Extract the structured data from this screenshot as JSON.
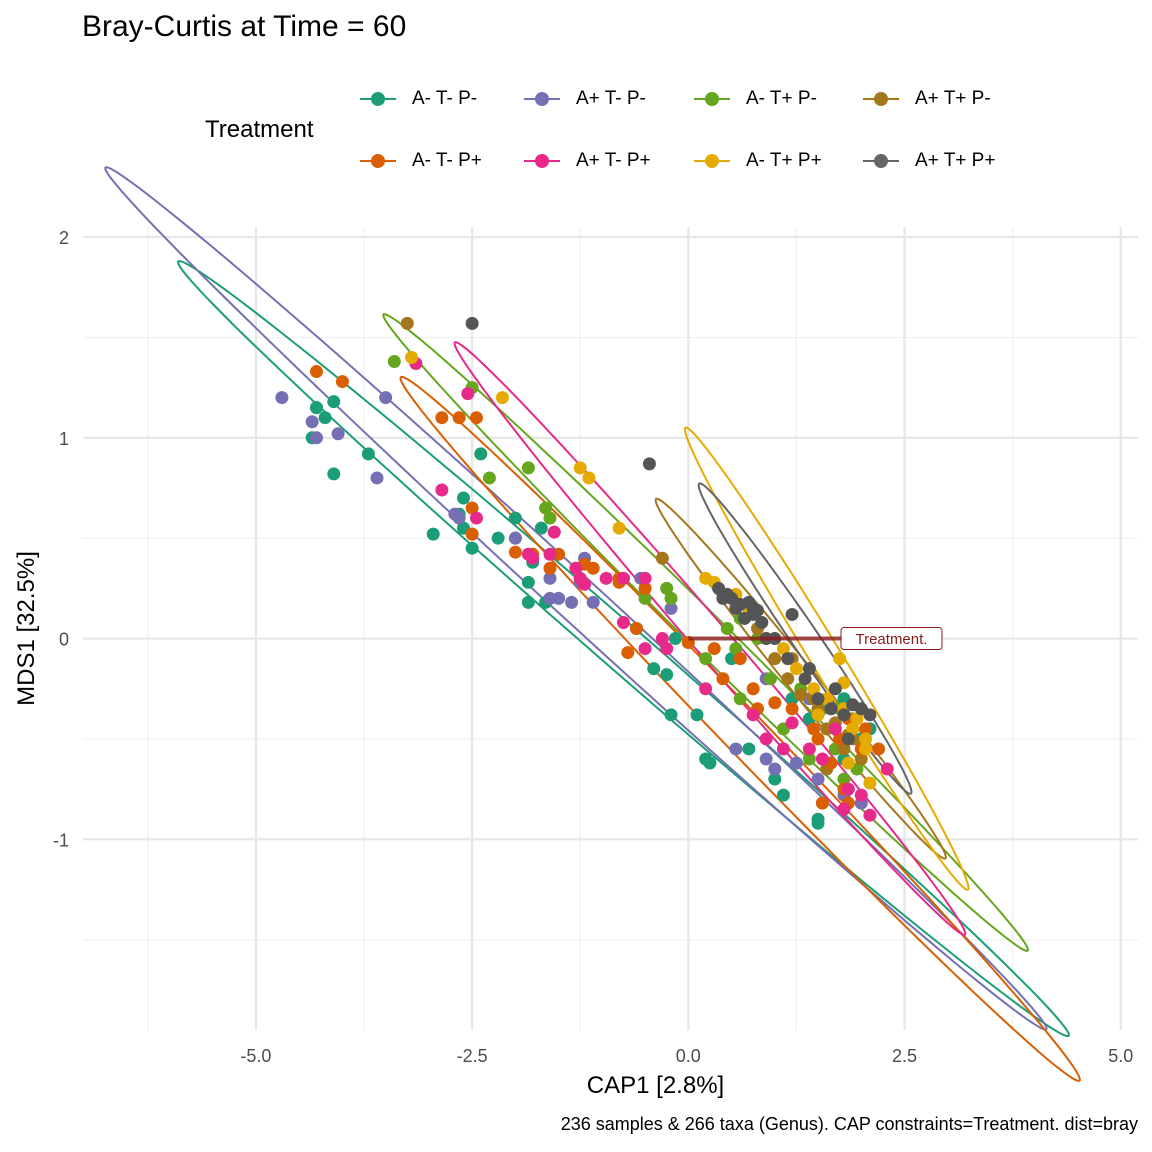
{
  "caption": "236 samples & 266 taxa (Genus). CAP constraints=Treatment. dist=bray",
  "legend": {
    "title": "Treatment",
    "items": [
      {
        "label": "A- T- P-",
        "color": "#1B9E77"
      },
      {
        "label": "A+ T- P-",
        "color": "#7570B3"
      },
      {
        "label": "A- T+ P-",
        "color": "#66A61E"
      },
      {
        "label": "A+ T+ P-",
        "color": "#A6761D"
      },
      {
        "label": "A- T- P+",
        "color": "#D95F02"
      },
      {
        "label": "A+ T- P+",
        "color": "#E7298A"
      },
      {
        "label": "A- T+ P+",
        "color": "#E6AB02"
      },
      {
        "label": "A+ T+ P+",
        "color": "#666666"
      }
    ]
  },
  "chart_data": {
    "type": "scatter",
    "title": "Bray-Curtis at Time = 60",
    "xlabel": "CAP1 [2.8%]",
    "ylabel": "MDS1 [32.5%]",
    "xlim": [
      -7.0,
      5.2
    ],
    "ylim": [
      -1.95,
      2.05
    ],
    "x_ticks": [
      -5.0,
      -2.5,
      0.0,
      2.5,
      5.0
    ],
    "x_tick_labels": [
      "-5.0",
      "-2.5",
      "0.0",
      "2.5",
      "5.0"
    ],
    "y_ticks": [
      -1,
      0,
      1,
      2
    ],
    "y_tick_labels": [
      "-1",
      "0",
      "1",
      "2"
    ],
    "grid": true,
    "legend_position": "top",
    "biplot_arrow": {
      "label": "Treatment.",
      "from": [
        0.0,
        0.0
      ],
      "to": [
        1.8,
        0.0
      ],
      "color": "#8B1A1A"
    },
    "ellipses": [
      {
        "series": "A- T- P-",
        "color": "#1B9E77",
        "center": [
          -0.75,
          -0.05
        ],
        "semi_major": 5.5,
        "semi_minor": 0.14,
        "angle_deg": -20.5
      },
      {
        "series": "A+ T- P-",
        "color": "#7570B3",
        "center": [
          -1.3,
          0.2
        ],
        "semi_major": 5.85,
        "semi_minor": 0.14,
        "angle_deg": -21.5
      },
      {
        "series": "A- T+ P-",
        "color": "#66A61E",
        "center": [
          0.2,
          0.03
        ],
        "semi_major": 4.05,
        "semi_minor": 0.12,
        "angle_deg": -23.0
      },
      {
        "series": "A+ T+ P-",
        "color": "#A6761D",
        "center": [
          1.3,
          -0.2
        ],
        "semi_major": 1.9,
        "semi_minor": 0.1,
        "angle_deg": -28.0
      },
      {
        "series": "A- T- P+",
        "color": "#D95F02",
        "center": [
          0.6,
          -0.45
        ],
        "semi_major": 4.3,
        "semi_minor": 0.14,
        "angle_deg": -24.0
      },
      {
        "series": "A+ T- P+",
        "color": "#E7298A",
        "center": [
          0.25,
          0.0
        ],
        "semi_major": 3.3,
        "semi_minor": 0.12,
        "angle_deg": -26.5
      },
      {
        "series": "A- T+ P+",
        "color": "#E6AB02",
        "center": [
          1.6,
          -0.1
        ],
        "semi_major": 2.0,
        "semi_minor": 0.12,
        "angle_deg": -35.0
      },
      {
        "series": "A+ T+ P+",
        "color": "#666666",
        "center": [
          1.35,
          0.0
        ],
        "semi_major": 1.45,
        "semi_minor": 0.1,
        "angle_deg": -32.0
      }
    ],
    "series": [
      {
        "name": "A- T- P-",
        "color": "#1B9E77",
        "points": [
          [
            -4.3,
            1.15
          ],
          [
            -4.2,
            1.1
          ],
          [
            -4.1,
            1.18
          ],
          [
            -4.35,
            1.0
          ],
          [
            -4.1,
            0.82
          ],
          [
            -3.7,
            0.92
          ],
          [
            -2.95,
            0.52
          ],
          [
            -2.6,
            0.7
          ],
          [
            -2.5,
            0.45
          ],
          [
            -2.2,
            0.5
          ],
          [
            -2.0,
            0.6
          ],
          [
            -1.85,
            0.28
          ],
          [
            -1.65,
            0.18
          ],
          [
            -1.85,
            0.18
          ],
          [
            -2.4,
            0.92
          ],
          [
            -1.7,
            0.55
          ],
          [
            -0.4,
            -0.15
          ],
          [
            -0.25,
            -0.18
          ],
          [
            -0.2,
            -0.38
          ],
          [
            0.1,
            -0.38
          ],
          [
            0.2,
            -0.6
          ],
          [
            0.25,
            -0.62
          ],
          [
            1.0,
            -0.7
          ],
          [
            1.1,
            -0.78
          ],
          [
            1.5,
            -0.9
          ],
          [
            1.5,
            -0.92
          ],
          [
            1.8,
            -0.6
          ],
          [
            2.0,
            -0.5
          ],
          [
            2.1,
            -0.45
          ],
          [
            1.8,
            -0.3
          ],
          [
            1.2,
            -0.3
          ],
          [
            0.5,
            -0.1
          ],
          [
            -0.15,
            0.0
          ],
          [
            -0.6,
            0.05
          ],
          [
            -2.6,
            0.55
          ],
          [
            -4.3,
            1.15
          ],
          [
            -2.65,
            0.62
          ],
          [
            -1.8,
            0.38
          ],
          [
            0.7,
            -0.55
          ],
          [
            1.4,
            -0.4
          ]
        ]
      },
      {
        "name": "A+ T- P-",
        "color": "#7570B3",
        "points": [
          [
            -4.7,
            1.2
          ],
          [
            -4.35,
            1.08
          ],
          [
            -4.05,
            1.02
          ],
          [
            -4.3,
            1.0
          ],
          [
            -3.6,
            0.8
          ],
          [
            -3.5,
            1.2
          ],
          [
            -2.7,
            0.62
          ],
          [
            -2.65,
            0.6
          ],
          [
            -2.0,
            0.5
          ],
          [
            -1.6,
            0.3
          ],
          [
            -1.5,
            0.2
          ],
          [
            -1.6,
            0.2
          ],
          [
            -1.35,
            0.18
          ],
          [
            -1.1,
            0.18
          ],
          [
            -1.2,
            0.4
          ],
          [
            -0.55,
            0.3
          ],
          [
            -0.2,
            0.15
          ],
          [
            0.55,
            -0.55
          ],
          [
            0.9,
            -0.6
          ],
          [
            1.0,
            -0.65
          ],
          [
            1.25,
            -0.62
          ],
          [
            1.5,
            -0.7
          ],
          [
            1.8,
            -0.78
          ],
          [
            2.0,
            -0.82
          ],
          [
            1.4,
            -0.3
          ],
          [
            0.9,
            -0.2
          ],
          [
            -2.0,
            0.5
          ],
          [
            -1.25,
            0.28
          ]
        ]
      },
      {
        "name": "A- T+ P-",
        "color": "#66A61E",
        "points": [
          [
            -3.4,
            1.38
          ],
          [
            -2.5,
            1.25
          ],
          [
            -2.3,
            0.8
          ],
          [
            -1.85,
            0.85
          ],
          [
            -1.65,
            0.65
          ],
          [
            -1.6,
            0.6
          ],
          [
            -0.5,
            0.2
          ],
          [
            -0.25,
            0.25
          ],
          [
            -0.2,
            0.2
          ],
          [
            0.45,
            0.05
          ],
          [
            0.55,
            -0.05
          ],
          [
            0.6,
            0.1
          ],
          [
            0.8,
            0.0
          ],
          [
            0.95,
            -0.2
          ],
          [
            1.3,
            -0.25
          ],
          [
            1.55,
            -0.35
          ],
          [
            1.75,
            -0.35
          ],
          [
            1.9,
            -0.4
          ],
          [
            1.7,
            -0.55
          ],
          [
            2.0,
            -0.52
          ],
          [
            1.4,
            -0.6
          ],
          [
            1.8,
            -0.7
          ],
          [
            0.6,
            -0.3
          ],
          [
            0.2,
            -0.1
          ],
          [
            1.1,
            -0.45
          ],
          [
            1.95,
            -0.65
          ]
        ]
      },
      {
        "name": "A+ T+ P-",
        "color": "#A6761D",
        "points": [
          [
            -3.25,
            1.57
          ],
          [
            -0.3,
            0.4
          ],
          [
            0.7,
            0.12
          ],
          [
            0.9,
            0.0
          ],
          [
            1.0,
            -0.1
          ],
          [
            1.15,
            -0.2
          ],
          [
            1.3,
            -0.28
          ],
          [
            1.5,
            -0.35
          ],
          [
            1.6,
            -0.45
          ],
          [
            1.7,
            -0.42
          ],
          [
            1.8,
            -0.55
          ],
          [
            1.9,
            -0.5
          ],
          [
            2.0,
            -0.6
          ],
          [
            1.6,
            -0.65
          ],
          [
            1.45,
            -0.3
          ],
          [
            1.85,
            -0.48
          ],
          [
            0.8,
            0.05
          ],
          [
            1.2,
            -0.1
          ]
        ]
      },
      {
        "name": "A- T- P+",
        "color": "#D95F02",
        "points": [
          [
            -4.3,
            1.33
          ],
          [
            -4.0,
            1.28
          ],
          [
            -2.85,
            1.1
          ],
          [
            -2.65,
            1.1
          ],
          [
            -2.45,
            1.1
          ],
          [
            -2.5,
            0.65
          ],
          [
            -2.5,
            0.52
          ],
          [
            -2.0,
            0.43
          ],
          [
            -1.6,
            0.35
          ],
          [
            -1.5,
            0.42
          ],
          [
            -1.3,
            0.35
          ],
          [
            -1.2,
            0.37
          ],
          [
            -1.1,
            0.35
          ],
          [
            -0.8,
            0.3
          ],
          [
            -0.5,
            0.25
          ],
          [
            -0.6,
            0.05
          ],
          [
            -0.7,
            -0.07
          ],
          [
            0.0,
            -0.02
          ],
          [
            0.3,
            -0.05
          ],
          [
            0.6,
            -0.1
          ],
          [
            0.4,
            -0.2
          ],
          [
            0.75,
            -0.25
          ],
          [
            1.0,
            -0.32
          ],
          [
            1.2,
            -0.35
          ],
          [
            1.45,
            -0.45
          ],
          [
            1.5,
            -0.5
          ],
          [
            1.65,
            -0.62
          ],
          [
            1.75,
            -0.5
          ],
          [
            1.85,
            -0.4
          ],
          [
            2.0,
            -0.55
          ],
          [
            1.8,
            -0.75
          ],
          [
            1.55,
            -0.82
          ],
          [
            1.85,
            -0.82
          ],
          [
            2.2,
            -0.55
          ],
          [
            2.05,
            -0.45
          ],
          [
            0.8,
            -0.35
          ],
          [
            -0.8,
            0.28
          ],
          [
            -1.8,
            0.42
          ]
        ]
      },
      {
        "name": "A+ T- P+",
        "color": "#E7298A",
        "points": [
          [
            -3.15,
            1.37
          ],
          [
            -2.55,
            1.22
          ],
          [
            -2.85,
            0.74
          ],
          [
            -2.45,
            0.6
          ],
          [
            -1.85,
            0.42
          ],
          [
            -1.8,
            0.4
          ],
          [
            -1.6,
            0.42
          ],
          [
            -1.55,
            0.53
          ],
          [
            -1.3,
            0.35
          ],
          [
            -1.25,
            0.3
          ],
          [
            -1.2,
            0.27
          ],
          [
            -0.95,
            0.3
          ],
          [
            -0.75,
            0.3
          ],
          [
            -0.5,
            0.3
          ],
          [
            -0.75,
            0.08
          ],
          [
            -0.5,
            -0.05
          ],
          [
            -0.25,
            -0.05
          ],
          [
            0.2,
            -0.25
          ],
          [
            0.75,
            -0.38
          ],
          [
            0.9,
            -0.5
          ],
          [
            1.2,
            -0.42
          ],
          [
            1.4,
            -0.55
          ],
          [
            1.55,
            -0.6
          ],
          [
            1.85,
            -0.75
          ],
          [
            2.0,
            -0.78
          ],
          [
            2.1,
            -0.88
          ],
          [
            1.8,
            -0.85
          ],
          [
            2.3,
            -0.65
          ],
          [
            1.1,
            -0.55
          ],
          [
            1.7,
            -0.45
          ],
          [
            -0.3,
            0.0
          ]
        ]
      },
      {
        "name": "A- T+ P+",
        "color": "#E6AB02",
        "points": [
          [
            -3.2,
            1.4
          ],
          [
            -2.15,
            1.2
          ],
          [
            -1.25,
            0.85
          ],
          [
            -1.15,
            0.8
          ],
          [
            -0.8,
            0.55
          ],
          [
            0.2,
            0.3
          ],
          [
            0.3,
            0.28
          ],
          [
            0.55,
            0.22
          ],
          [
            0.7,
            0.15
          ],
          [
            0.9,
            0.0
          ],
          [
            1.1,
            -0.05
          ],
          [
            1.25,
            -0.15
          ],
          [
            1.45,
            -0.25
          ],
          [
            1.6,
            -0.3
          ],
          [
            1.8,
            -0.35
          ],
          [
            1.9,
            -0.45
          ],
          [
            2.05,
            -0.5
          ],
          [
            2.05,
            -0.55
          ],
          [
            2.1,
            -0.72
          ],
          [
            1.85,
            -0.62
          ],
          [
            1.95,
            -0.4
          ],
          [
            1.8,
            -0.22
          ],
          [
            1.5,
            -0.38
          ],
          [
            1.75,
            -0.1
          ]
        ]
      },
      {
        "name": "A+ T+ P+",
        "color": "#555555",
        "points": [
          [
            -2.5,
            1.57
          ],
          [
            -0.45,
            0.87
          ],
          [
            0.35,
            0.25
          ],
          [
            0.4,
            0.2
          ],
          [
            0.5,
            0.2
          ],
          [
            0.55,
            0.15
          ],
          [
            0.6,
            0.17
          ],
          [
            0.7,
            0.18
          ],
          [
            0.75,
            0.15
          ],
          [
            0.8,
            0.14
          ],
          [
            0.65,
            0.1
          ],
          [
            0.75,
            0.12
          ],
          [
            0.9,
            0.0
          ],
          [
            1.0,
            0.0
          ],
          [
            1.2,
            0.12
          ],
          [
            1.35,
            -0.2
          ],
          [
            1.5,
            -0.3
          ],
          [
            1.65,
            -0.35
          ],
          [
            1.8,
            -0.38
          ],
          [
            1.9,
            -0.33
          ],
          [
            2.0,
            -0.35
          ],
          [
            2.1,
            -0.38
          ],
          [
            1.85,
            -0.5
          ],
          [
            1.7,
            -0.25
          ],
          [
            1.4,
            -0.15
          ],
          [
            1.15,
            -0.1
          ],
          [
            0.45,
            0.22
          ],
          [
            0.85,
            0.08
          ]
        ]
      }
    ]
  }
}
